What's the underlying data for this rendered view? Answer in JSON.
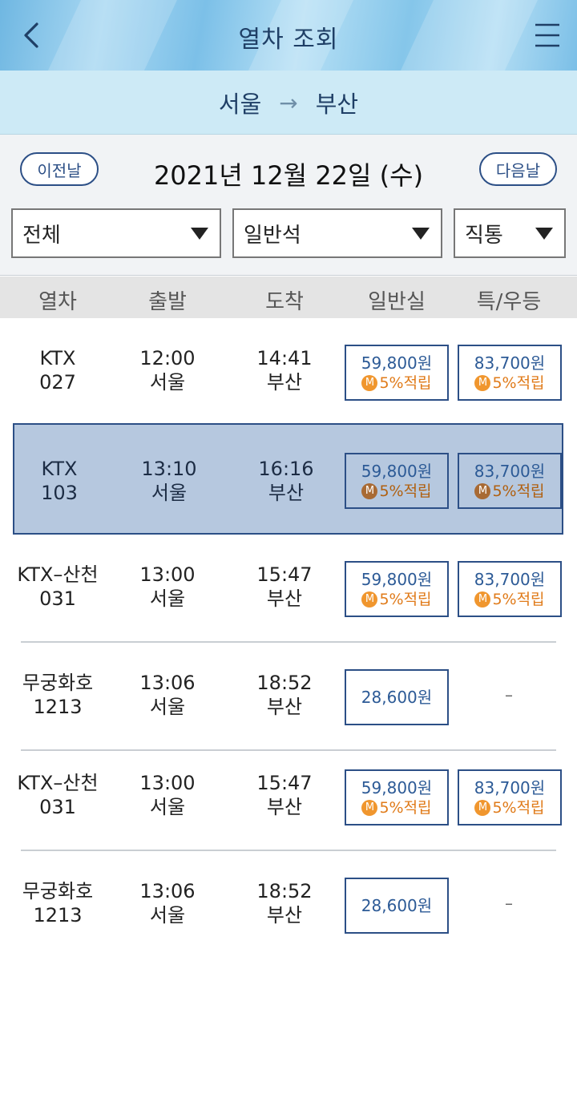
{
  "header": {
    "title": "열차 조회"
  },
  "route": {
    "from": "서울",
    "arrow": "→",
    "to": "부산"
  },
  "date_nav": {
    "prev_label": "이전날",
    "date": "2021년 12월 22일 (수)",
    "next_label": "다음날"
  },
  "filters": [
    {
      "value": "전체"
    },
    {
      "value": "일반석"
    },
    {
      "value": "직통"
    }
  ],
  "columns": [
    "열차",
    "출발",
    "도착",
    "일반실",
    "특/우등"
  ],
  "rows": [
    {
      "train_type": "KTX",
      "train_no": "027",
      "dep_time": "12:00",
      "dep_station": "서울",
      "arr_time": "14:41",
      "arr_station": "부산",
      "standard": {
        "price": "59,800원",
        "badge": "M",
        "bonus": "5%적립"
      },
      "premium": {
        "price": "83,700원",
        "badge": "M",
        "bonus": "5%적립"
      }
    },
    {
      "train_type": "KTX",
      "train_no": "103",
      "dep_time": "13:10",
      "dep_station": "서울",
      "arr_time": "16:16",
      "arr_station": "부산",
      "standard": {
        "price": "59,800원",
        "badge": "M",
        "bonus": "5%적립"
      },
      "premium": {
        "price": "83,700원",
        "badge": "M",
        "bonus": "5%적립"
      },
      "selected": true
    },
    {
      "train_type": "KTX–산천",
      "train_no": "031",
      "dep_time": "13:00",
      "dep_station": "서울",
      "arr_time": "15:47",
      "arr_station": "부산",
      "standard": {
        "price": "59,800원",
        "badge": "M",
        "bonus": "5%적립"
      },
      "premium": {
        "price": "83,700원",
        "badge": "M",
        "bonus": "5%적립"
      }
    },
    {
      "train_type": "무궁화호",
      "train_no": "1213",
      "dep_time": "13:06",
      "dep_station": "서울",
      "arr_time": "18:52",
      "arr_station": "부산",
      "standard": {
        "price": "28,600원"
      },
      "premium_text": "–"
    },
    {
      "train_type": "KTX–산천",
      "train_no": "031",
      "dep_time": "13:00",
      "dep_station": "서울",
      "arr_time": "15:47",
      "arr_station": "부산",
      "standard": {
        "price": "59,800원",
        "badge": "M",
        "bonus": "5%적립"
      },
      "premium": {
        "price": "83,700원",
        "badge": "M",
        "bonus": "5%적립"
      }
    },
    {
      "train_type": "무궁화호",
      "train_no": "1213",
      "dep_time": "13:06",
      "dep_station": "서울",
      "arr_time": "18:52",
      "arr_station": "부산",
      "standard": {
        "price": "28,600원"
      },
      "premium_text": "–"
    }
  ],
  "icons": {
    "back": "chevron-left-icon",
    "menu": "hamburger-menu-icon",
    "dropdown": "triangle-down-icon",
    "mileage_badge": "m-circle-icon"
  },
  "colors": {
    "accent": "#2c4f86",
    "bonus": "#e07b1a",
    "route_bar": "#cdeaf6",
    "selected_row": "#b6c8df"
  }
}
